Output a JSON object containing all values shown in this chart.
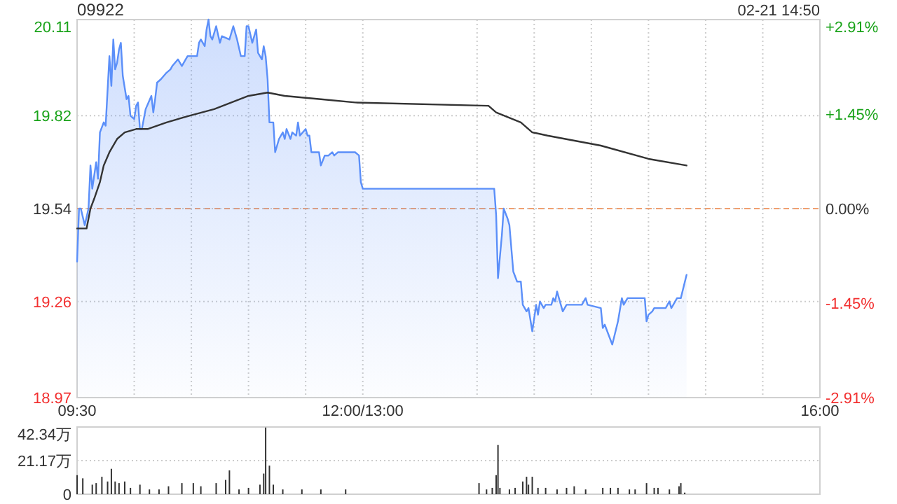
{
  "chart_data": [
    {
      "type": "area",
      "title": "09922",
      "subtitle": "02-21 14:50",
      "xlim": [
        9.5,
        16
      ],
      "xticks": [
        {
          "value": 9.5,
          "label": "09:30"
        },
        {
          "value": 10,
          "label": null
        },
        {
          "value": 10.5,
          "label": null
        },
        {
          "value": 11,
          "label": null
        },
        {
          "value": 11.5,
          "label": null
        },
        {
          "value": 12,
          "label": "12:00/13:00"
        },
        {
          "value": 13,
          "label": null
        },
        {
          "value": 13.5,
          "label": null
        },
        {
          "value": 14,
          "label": null
        },
        {
          "value": 14.5,
          "label": null
        },
        {
          "value": 15,
          "label": null
        },
        {
          "value": 15.5,
          "label": null
        },
        {
          "value": 16,
          "label": "16:00"
        }
      ],
      "ylim": [
        18.97,
        20.11
      ],
      "yticks": [
        18.97,
        19.26,
        19.54,
        19.82,
        20.11
      ],
      "y2lim": [
        -2.91,
        2.91
      ],
      "y2ticks": [
        {
          "value": -2.91,
          "label": "-2.91%"
        },
        {
          "value": -1.45,
          "label": "-1.45%"
        },
        {
          "value": 0,
          "label": "0.00%"
        },
        {
          "value": 1.45,
          "label": "+1.45%"
        },
        {
          "value": 2.91,
          "label": "+2.91%"
        }
      ],
      "grid": true,
      "ref_lines": [
        {
          "axis": "y",
          "value": 19.54,
          "color": "#f0a070",
          "line_style": "dashed"
        }
      ],
      "series": [
        {
          "color": "#5b8ff9",
          "x": [
            9.5,
            9.517,
            9.533,
            9.567,
            9.6,
            9.617,
            9.633,
            9.667,
            9.683,
            9.7,
            9.733,
            9.75,
            9.783,
            9.8,
            9.817,
            9.833,
            9.85,
            9.867,
            9.883,
            9.9,
            9.933,
            9.95,
            9.967,
            10,
            10.017,
            10.033,
            10.05,
            10.067,
            10.1,
            10.15,
            10.167,
            10.183,
            10.2,
            10.233,
            10.283,
            10.317,
            10.333,
            10.383,
            10.417,
            10.45,
            10.467,
            10.55,
            10.567,
            10.583,
            10.617,
            10.633,
            10.65,
            10.667,
            10.683,
            10.717,
            10.75,
            10.767,
            10.833,
            10.867,
            10.9,
            10.933,
            10.967,
            10.983,
            11,
            11.033,
            11.067,
            11.083,
            11.117,
            11.133,
            11.15,
            11.167,
            11.183,
            11.217,
            11.233,
            11.267,
            11.3,
            11.317,
            11.333,
            11.367,
            11.383,
            11.417,
            11.433,
            11.45,
            11.5,
            11.517,
            11.533,
            11.55,
            11.617,
            11.633,
            11.667,
            11.7,
            11.733,
            11.75,
            11.783,
            11.833,
            11.867,
            11.9,
            11.933,
            11.967,
            11.983,
            12,
            13,
            13.067,
            13.15,
            13.167,
            13.183,
            13.217,
            13.233,
            13.267,
            13.283,
            13.317,
            13.35,
            13.383,
            13.4,
            13.433,
            13.45,
            13.483,
            13.517,
            13.533,
            13.55,
            13.583,
            13.6,
            13.65,
            13.667,
            13.683,
            13.7,
            13.733,
            13.75,
            13.783,
            13.917,
            13.95,
            13.967,
            14.083,
            14.1,
            14.117,
            14.15,
            14.183,
            14.233,
            14.267,
            14.283,
            14.317,
            14.467,
            14.483,
            14.5,
            14.533,
            14.55,
            14.65,
            14.683,
            14.7,
            14.717,
            14.75,
            14.783,
            14.833
          ],
          "values": [
            19.38,
            19.54,
            19.54,
            19.49,
            19.54,
            19.67,
            19.6,
            19.68,
            19.63,
            19.77,
            19.8,
            19.79,
            20.0,
            19.91,
            20.05,
            19.96,
            19.98,
            20.02,
            20.04,
            19.94,
            19.87,
            19.88,
            19.82,
            19.81,
            19.85,
            19.86,
            19.78,
            19.78,
            19.84,
            19.88,
            19.83,
            19.87,
            19.92,
            19.93,
            19.95,
            19.96,
            19.97,
            19.99,
            19.97,
            19.99,
            20.0,
            20.0,
            20.04,
            20.05,
            20.03,
            20.08,
            20.11,
            20.06,
            20.05,
            20.09,
            20.04,
            20.06,
            20.05,
            20.09,
            20.05,
            20.0,
            20.0,
            20.09,
            20.09,
            20.04,
            20.08,
            20.01,
            19.99,
            20.03,
            20.0,
            19.93,
            19.8,
            19.8,
            19.71,
            19.75,
            19.77,
            19.75,
            19.78,
            19.75,
            19.77,
            19.76,
            19.8,
            19.76,
            19.78,
            19.76,
            19.76,
            19.71,
            19.71,
            19.67,
            19.7,
            19.7,
            19.71,
            19.7,
            19.71,
            19.71,
            19.71,
            19.71,
            19.71,
            19.7,
            19.62,
            19.6,
            19.6,
            19.6,
            19.6,
            19.52,
            19.33,
            19.46,
            19.54,
            19.51,
            19.49,
            19.35,
            19.32,
            19.32,
            19.25,
            19.23,
            19.24,
            19.17,
            19.25,
            19.22,
            19.26,
            19.24,
            19.25,
            19.25,
            19.27,
            19.26,
            19.29,
            19.25,
            19.23,
            19.25,
            19.25,
            19.27,
            19.25,
            19.24,
            19.18,
            19.19,
            19.16,
            19.13,
            19.2,
            19.27,
            19.25,
            19.27,
            19.27,
            19.2,
            19.22,
            19.23,
            19.24,
            19.24,
            19.26,
            19.24,
            19.25,
            19.27,
            19.27,
            19.34
          ]
        },
        {
          "type": "line",
          "color": "#333333",
          "x": [
            9.5,
            9.583,
            9.617,
            9.65,
            9.7,
            9.733,
            9.783,
            9.85,
            9.917,
            10.017,
            10.117,
            10.283,
            10.483,
            10.7,
            10.85,
            11,
            11.167,
            11.317,
            11.633,
            11.933,
            13.1,
            13.167,
            13.383,
            13.483,
            13.617,
            14.083,
            14.5,
            14.833
          ],
          "values": [
            19.48,
            19.48,
            19.54,
            19.57,
            19.62,
            19.67,
            19.71,
            19.75,
            19.77,
            19.78,
            19.78,
            19.8,
            19.82,
            19.84,
            19.86,
            19.88,
            19.89,
            19.88,
            19.87,
            19.86,
            19.85,
            19.83,
            19.8,
            19.77,
            19.76,
            19.73,
            19.69,
            19.67
          ]
        }
      ]
    },
    {
      "type": "bar",
      "color": "#333333",
      "xlim": [
        9.5,
        16
      ],
      "ylim": [
        0,
        42.34
      ],
      "yticks": [
        0,
        {
          "value": 21.17,
          "label": "21.17万"
        },
        {
          "value": 42.34,
          "label": "42.34万"
        }
      ],
      "tick_labels": "y",
      "grid": "y",
      "x": [
        9.5,
        9.55,
        9.633,
        9.667,
        9.717,
        9.767,
        9.8,
        9.833,
        9.867,
        9.917,
        9.967,
        10.05,
        10.133,
        10.217,
        10.3,
        10.417,
        10.517,
        10.583,
        10.717,
        10.8,
        10.833,
        10.917,
        11,
        11.1,
        11.133,
        11.15,
        11.183,
        11.217,
        11.3,
        11.467,
        11.633,
        11.85,
        13.017,
        13.083,
        13.133,
        13.167,
        13.183,
        13.2,
        13.283,
        13.333,
        13.4,
        13.433,
        13.45,
        13.483,
        13.533,
        13.6,
        13.7,
        13.783,
        13.85,
        13.95,
        14.1,
        14.167,
        14.233,
        14.333,
        14.383,
        14.483,
        14.55,
        14.583,
        14.683,
        14.767,
        14.783,
        14.817
      ],
      "values": [
        12,
        10,
        6,
        7,
        11,
        8,
        16,
        8,
        7,
        8,
        4,
        6,
        3,
        3,
        5,
        7,
        7,
        5,
        7,
        9,
        15,
        3,
        4,
        6,
        13,
        42,
        18,
        6,
        3,
        3,
        3,
        3,
        7,
        3,
        4,
        12,
        31,
        4,
        3,
        4,
        8,
        11,
        6,
        11,
        4,
        4,
        3,
        4,
        5,
        3,
        4,
        4,
        4,
        3,
        3,
        7,
        4,
        4,
        3,
        5,
        7,
        1
      ]
    }
  ]
}
